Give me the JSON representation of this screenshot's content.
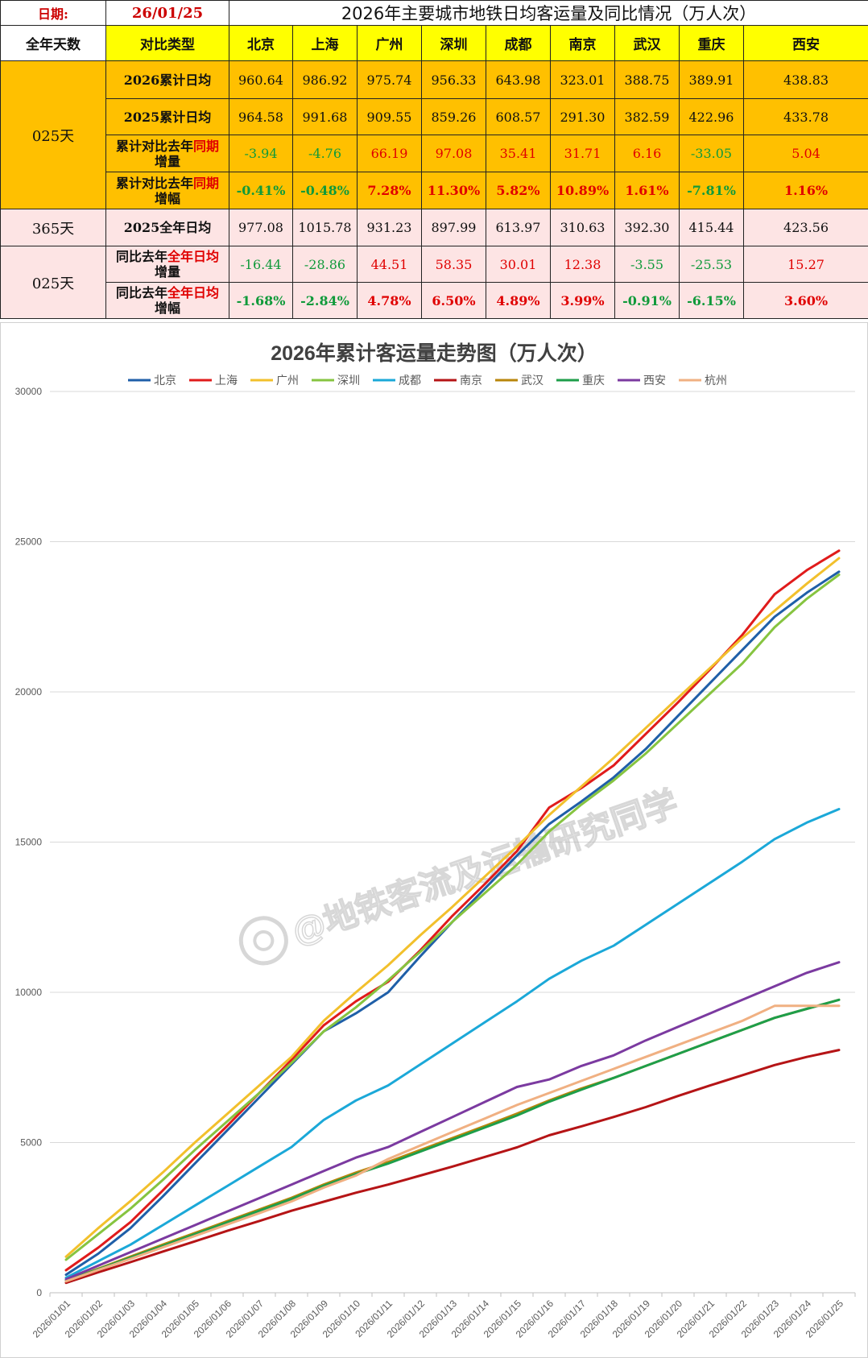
{
  "table": {
    "date_label": "日期:",
    "date_value": "26/01/25",
    "title": "2026年主要城市地铁日均客运量及同比情况（万人次）",
    "col_days": "全年天数",
    "col_type": "对比类型",
    "cities": [
      "北京",
      "上海",
      "广州",
      "深圳",
      "成都",
      "南京",
      "武汉",
      "重庆",
      "西安"
    ],
    "group1_label": "025天",
    "group2_label": "365天",
    "group3_label": "025天",
    "row_labels": {
      "r1": "2026累计日均",
      "r2": "2025累计日均",
      "r3_a": "累计对比去年",
      "r3_b": "同期",
      "r3_c": "增量",
      "r4_a": "累计对比去年",
      "r4_b": "同期",
      "r4_c": "增幅",
      "r5": "2025全年日均",
      "r6_a": "同比去年",
      "r6_b": "全年日均",
      "r6_c": "增量",
      "r7_a": "同比去年",
      "r7_b": "全年日均",
      "r7_c": "增幅"
    },
    "rows": {
      "r1": [
        "960.64",
        "986.92",
        "975.74",
        "956.33",
        "643.98",
        "323.01",
        "388.75",
        "389.91",
        "438.83"
      ],
      "r2": [
        "964.58",
        "991.68",
        "909.55",
        "859.26",
        "608.57",
        "291.30",
        "382.59",
        "422.96",
        "433.78"
      ],
      "r3": [
        "-3.94",
        "-4.76",
        "66.19",
        "97.08",
        "35.41",
        "31.71",
        "6.16",
        "-33.05",
        "5.04"
      ],
      "r4": [
        "-0.41%",
        "-0.48%",
        "7.28%",
        "11.30%",
        "5.82%",
        "10.89%",
        "1.61%",
        "-7.81%",
        "1.16%"
      ],
      "r5": [
        "977.08",
        "1015.78",
        "931.23",
        "897.99",
        "613.97",
        "310.63",
        "392.30",
        "415.44",
        "423.56"
      ],
      "r6": [
        "-16.44",
        "-28.86",
        "44.51",
        "58.35",
        "30.01",
        "12.38",
        "-3.55",
        "-25.53",
        "15.27"
      ],
      "r7": [
        "-1.68%",
        "-2.84%",
        "4.78%",
        "6.50%",
        "4.89%",
        "3.99%",
        "-0.91%",
        "-6.15%",
        "3.60%"
      ]
    }
  },
  "chart_data": {
    "type": "line",
    "title": "2026年累计客运量走势图（万人次）",
    "watermark": "@地铁客流及运输研究同学",
    "ylim": [
      0,
      30000
    ],
    "yticks": [
      0,
      5000,
      10000,
      15000,
      20000,
      25000,
      30000
    ],
    "x": [
      "2026/01/01",
      "2026/01/02",
      "2026/01/03",
      "2026/01/04",
      "2026/01/05",
      "2026/01/06",
      "2026/01/07",
      "2026/01/08",
      "2026/01/09",
      "2026/01/10",
      "2026/01/11",
      "2026/01/12",
      "2026/01/13",
      "2026/01/14",
      "2026/01/15",
      "2026/01/16",
      "2026/01/17",
      "2026/01/18",
      "2026/01/19",
      "2026/01/20",
      "2026/01/21",
      "2026/01/22",
      "2026/01/23",
      "2026/01/24",
      "2026/01/25"
    ],
    "series": [
      {
        "name": "北京",
        "color": "#1f5fa8",
        "values": [
          600,
          1300,
          2150,
          3200,
          4300,
          5400,
          6500,
          7600,
          8700,
          9300,
          10000,
          11200,
          12350,
          13450,
          14550,
          15600,
          16350,
          17150,
          18100,
          19200,
          20300,
          21400,
          22500,
          23300,
          24000
        ]
      },
      {
        "name": "上海",
        "color": "#e01b1b",
        "values": [
          750,
          1500,
          2350,
          3400,
          4500,
          5550,
          6650,
          7750,
          8900,
          9700,
          10350,
          11400,
          12550,
          13600,
          14700,
          16150,
          16800,
          17550,
          18600,
          19650,
          20750,
          21900,
          23250,
          24050,
          24700
        ]
      },
      {
        "name": "广州",
        "color": "#f2c02c",
        "values": [
          1200,
          2150,
          3050,
          4000,
          5000,
          5950,
          6900,
          7850,
          9050,
          10000,
          10900,
          11900,
          12850,
          13850,
          14850,
          15900,
          16850,
          17800,
          18800,
          19800,
          20800,
          21800,
          22700,
          23600,
          24450
        ]
      },
      {
        "name": "深圳",
        "color": "#86c440",
        "values": [
          1100,
          1950,
          2800,
          3750,
          4750,
          5700,
          6650,
          7650,
          8700,
          9500,
          10400,
          11350,
          12350,
          13300,
          14250,
          15350,
          16250,
          17050,
          17950,
          18950,
          19950,
          20950,
          22150,
          23100,
          23900
        ]
      },
      {
        "name": "成都",
        "color": "#1ba8d8",
        "values": [
          500,
          1050,
          1600,
          2250,
          2900,
          3550,
          4200,
          4850,
          5750,
          6400,
          6900,
          7600,
          8300,
          9000,
          9700,
          10450,
          11050,
          11550,
          12250,
          12950,
          13650,
          14350,
          15100,
          15650,
          16100
        ]
      },
      {
        "name": "南京",
        "color": "#b51416",
        "values": [
          330,
          680,
          1020,
          1370,
          1710,
          2060,
          2390,
          2730,
          3030,
          3330,
          3600,
          3900,
          4200,
          4520,
          4840,
          5240,
          5540,
          5850,
          6180,
          6550,
          6900,
          7240,
          7580,
          7850,
          8080
        ]
      },
      {
        "name": "武汉",
        "color": "#b8860b",
        "values": [
          400,
          800,
          1200,
          1600,
          1990,
          2380,
          2770,
          3160,
          3600,
          4000,
          4350,
          4750,
          5150,
          5550,
          5960,
          6400,
          6800,
          7150,
          7550,
          7950,
          8350,
          8750,
          9150,
          9450,
          9750
        ]
      },
      {
        "name": "重庆",
        "color": "#1e9e4a",
        "values": [
          400,
          780,
          1170,
          1560,
          1950,
          2340,
          2730,
          3120,
          3560,
          3950,
          4300,
          4700,
          5100,
          5500,
          5900,
          6360,
          6760,
          7150,
          7550,
          7950,
          8350,
          8750,
          9150,
          9450,
          9750
        ]
      },
      {
        "name": "西安",
        "color": "#7b3aa0",
        "values": [
          450,
          900,
          1350,
          1800,
          2250,
          2700,
          3150,
          3600,
          4050,
          4500,
          4850,
          5350,
          5850,
          6350,
          6850,
          7100,
          7550,
          7900,
          8400,
          8850,
          9300,
          9750,
          10200,
          10650,
          11000
        ]
      },
      {
        "name": "杭州",
        "color": "#f0b082",
        "values": [
          380,
          760,
          1130,
          1510,
          1890,
          2270,
          2650,
          3040,
          3500,
          3900,
          4450,
          4900,
          5350,
          5800,
          6250,
          6650,
          7050,
          7450,
          7850,
          8250,
          8650,
          9050,
          9550,
          9550,
          9550
        ]
      }
    ]
  }
}
